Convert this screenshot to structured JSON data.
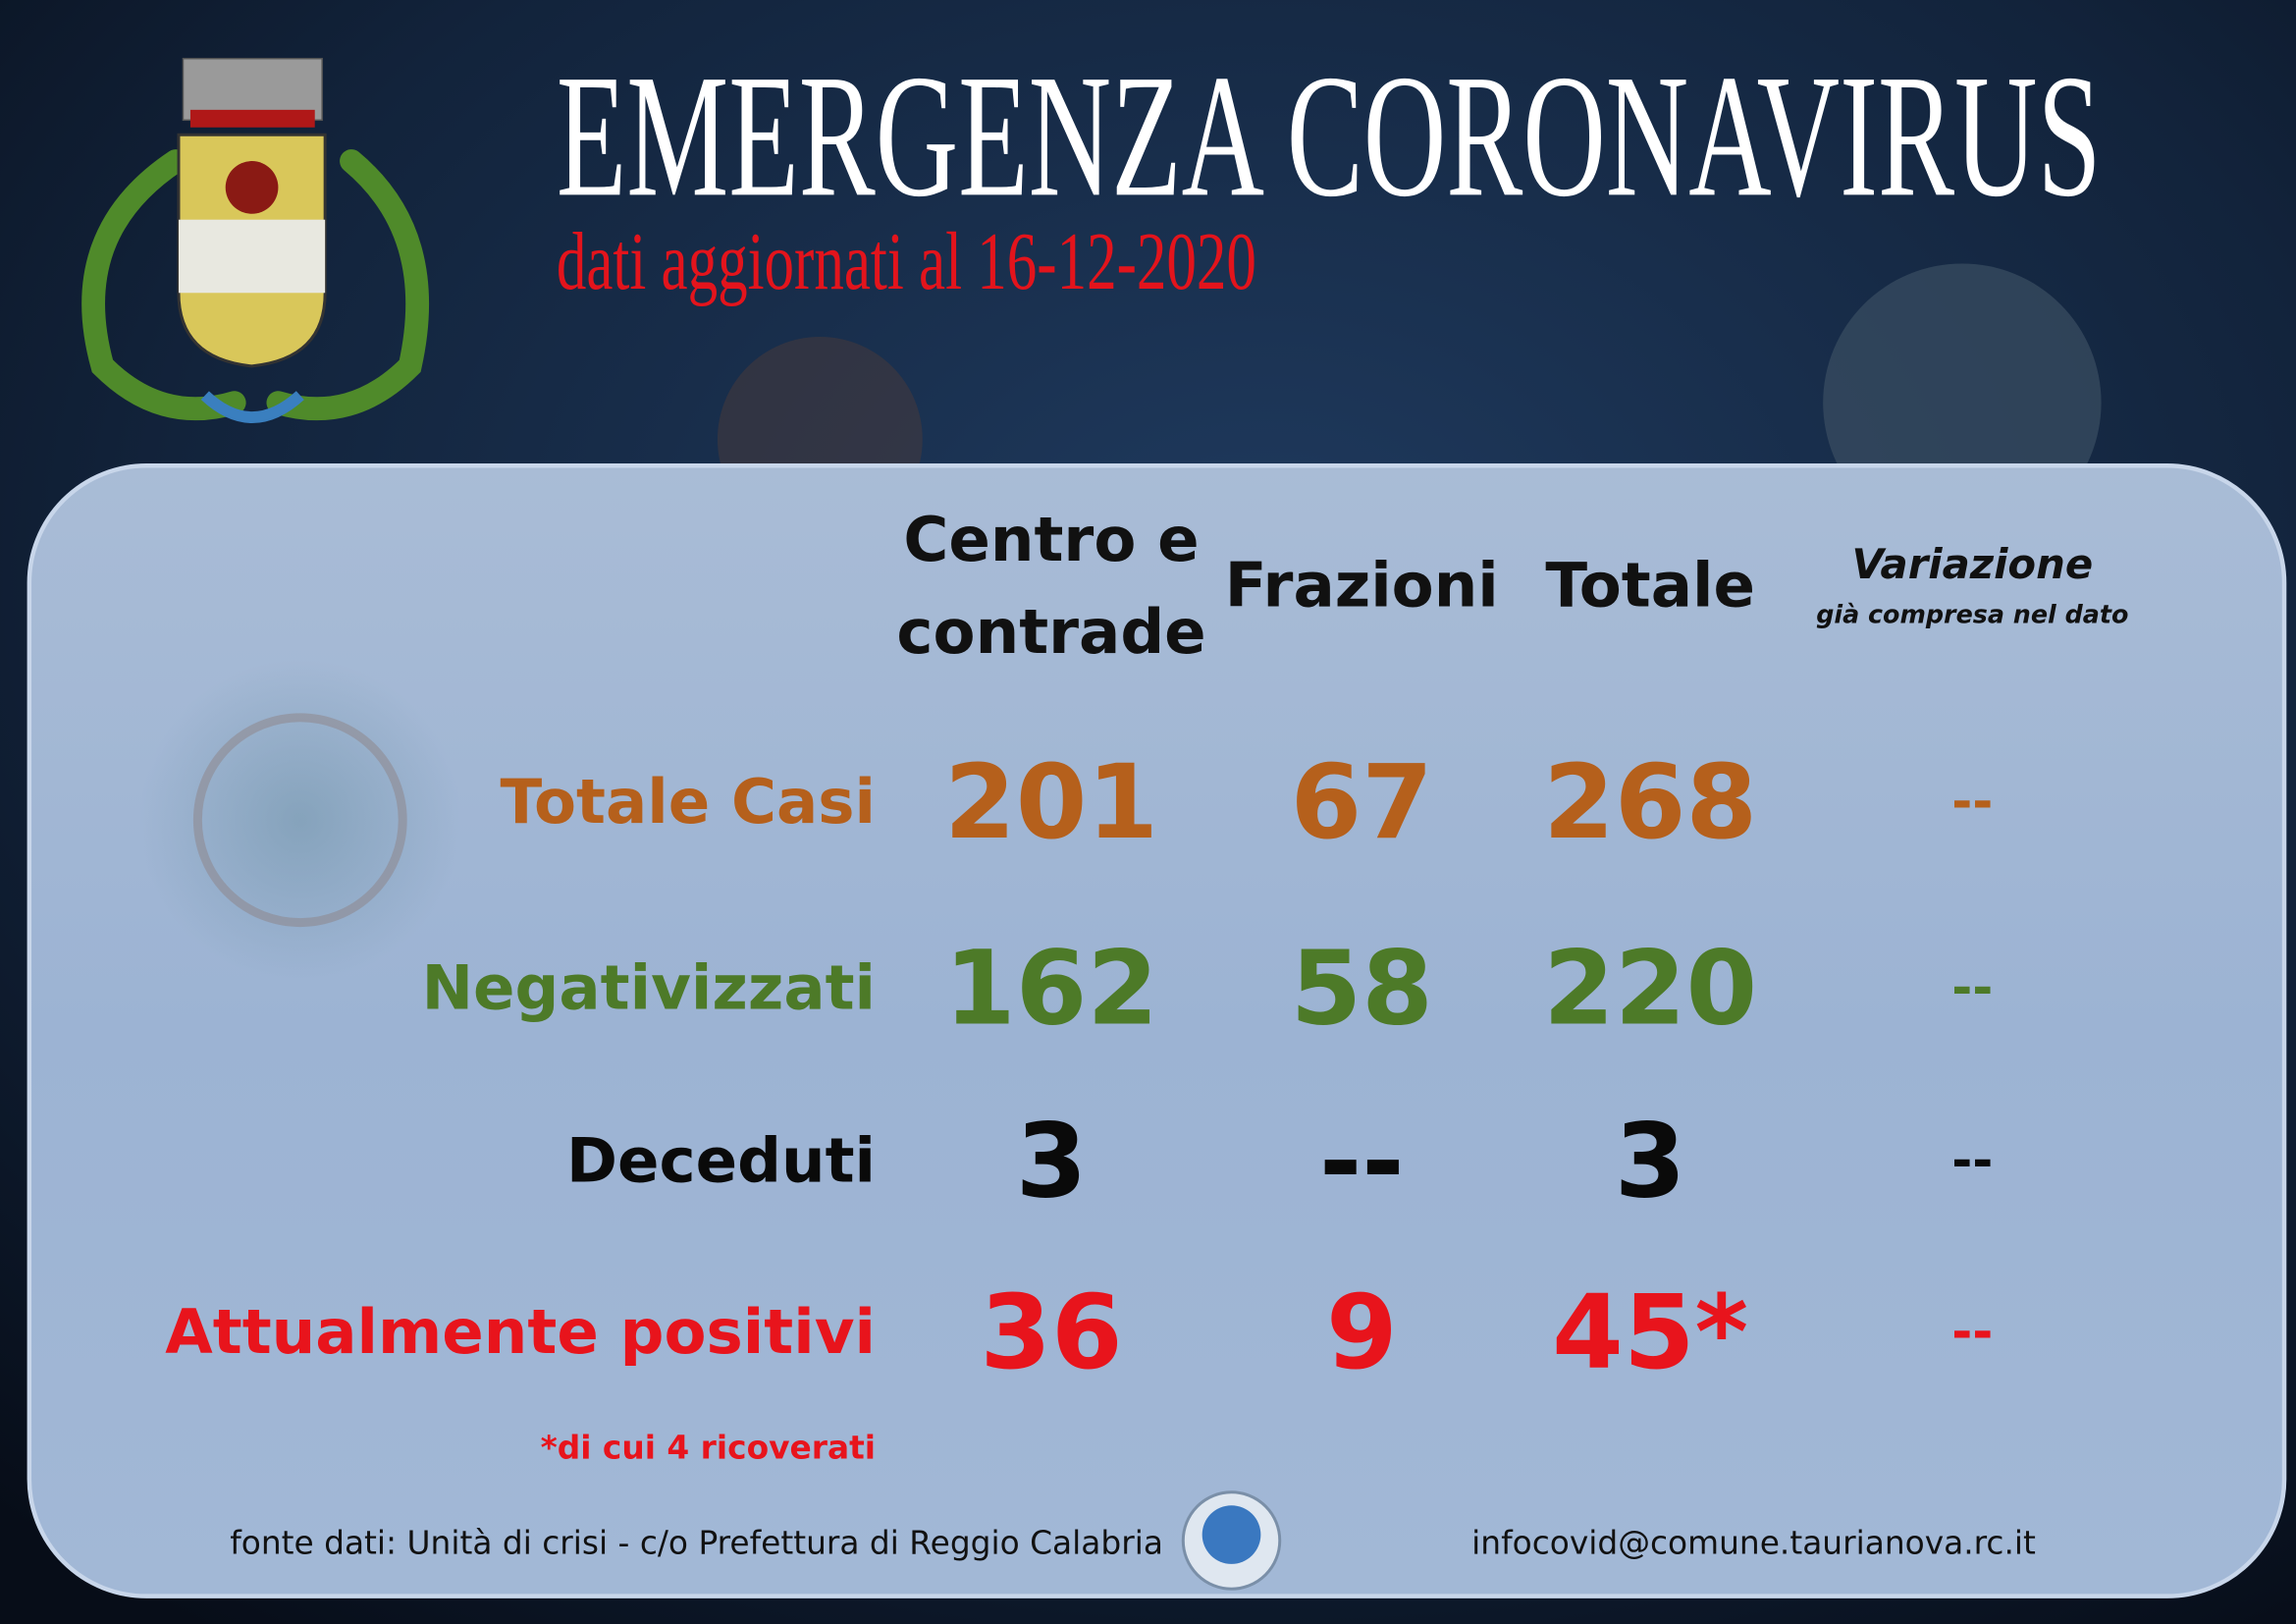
{
  "header": {
    "title": "EMERGENZA CORONAVIRUS",
    "subtitle": "dati aggiornati al 16-12-2020"
  },
  "table": {
    "columns": [
      "Centro e contrade",
      "Frazioni",
      "Totale",
      {
        "title": "Variazione",
        "note": "già compresa nel dato"
      }
    ],
    "rows": [
      {
        "label": "Totale Casi",
        "cells": [
          201,
          67,
          268,
          "--"
        ]
      },
      {
        "label": "Negativizzati",
        "cells": [
          162,
          58,
          220,
          "--"
        ]
      },
      {
        "label": "Deceduti",
        "cells": [
          3,
          "--",
          3,
          "--"
        ]
      },
      {
        "label": "Attualmente positivi",
        "cells": [
          36,
          9,
          "45*",
          "--"
        ]
      }
    ],
    "footnote": "*di cui 4 ricoverati"
  },
  "footer": {
    "source": "fonte dati: Unità di crisi - c/o Prefettura di Reggio Calabria",
    "email": "infocovid@comune.taurianova.rc.it"
  }
}
